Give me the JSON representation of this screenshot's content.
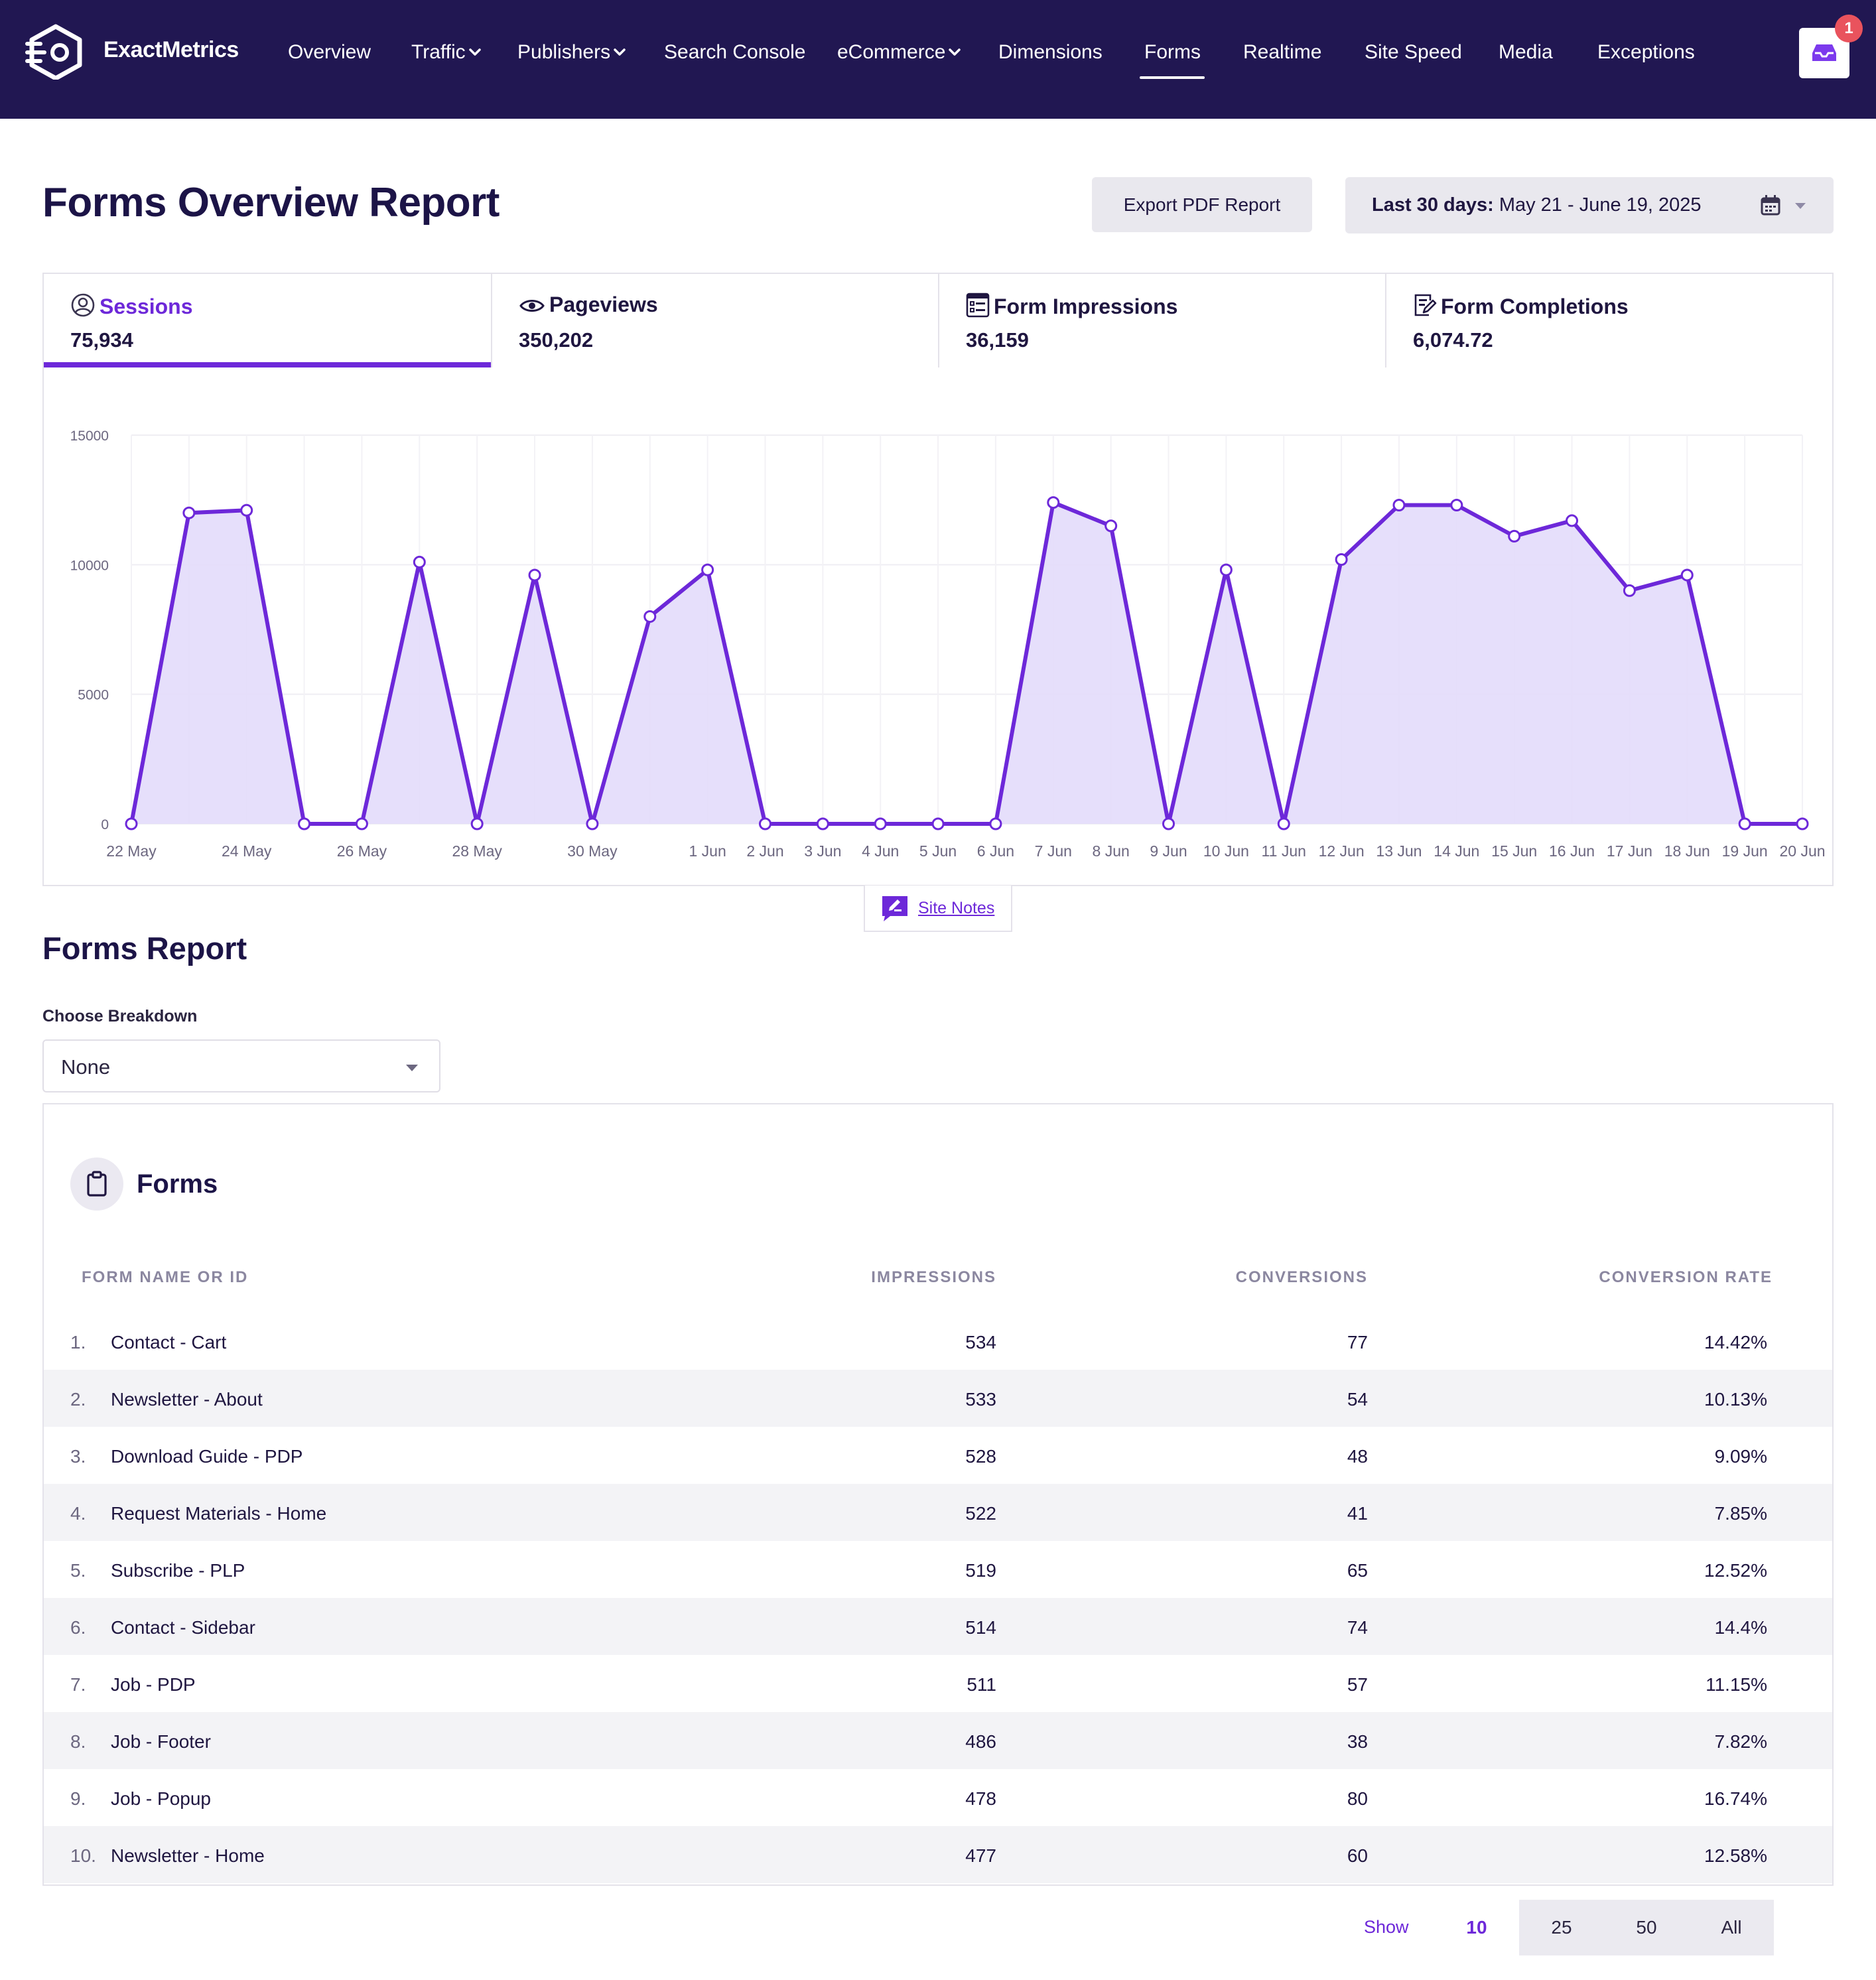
{
  "brand": {
    "name": "ExactMetrics"
  },
  "nav": {
    "items": [
      {
        "label": "Overview",
        "dropdown": false
      },
      {
        "label": "Traffic",
        "dropdown": true
      },
      {
        "label": "Publishers",
        "dropdown": true
      },
      {
        "label": "Search Console",
        "dropdown": false
      },
      {
        "label": "eCommerce",
        "dropdown": true
      },
      {
        "label": "Dimensions",
        "dropdown": false
      },
      {
        "label": "Forms",
        "dropdown": false,
        "active": true
      },
      {
        "label": "Realtime",
        "dropdown": false
      },
      {
        "label": "Site Speed",
        "dropdown": false
      },
      {
        "label": "Media",
        "dropdown": false
      },
      {
        "label": "Exceptions",
        "dropdown": false
      }
    ],
    "notifications_count": "1",
    "inbox_icon": "inbox-icon"
  },
  "header": {
    "title": "Forms Overview Report",
    "export_label": "Export PDF Report",
    "date_prefix": "Last 30 days:",
    "date_range": "May 21 - June 19, 2025",
    "calendar_icon": "calendar-icon"
  },
  "metrics": [
    {
      "label": "Sessions",
      "value": "75,934",
      "icon": "user-circle-icon",
      "active": true
    },
    {
      "label": "Pageviews",
      "value": "350,202",
      "icon": "eye-icon",
      "active": false
    },
    {
      "label": "Form Impressions",
      "value": "36,159",
      "icon": "form-list-icon",
      "active": false
    },
    {
      "label": "Form Completions",
      "value": "6,074.72",
      "icon": "form-edit-icon",
      "active": false
    }
  ],
  "chart_data": {
    "type": "area",
    "series": [
      {
        "values": [
          0,
          12000,
          12100,
          0,
          0,
          10100,
          0,
          9600,
          0,
          8000,
          9800,
          0,
          0,
          0,
          0,
          0,
          12400,
          11500,
          0,
          9800,
          0,
          10200,
          12300,
          12300,
          11100,
          11700,
          9000,
          9600,
          0,
          0
        ]
      }
    ],
    "x_labels": [
      "22 May",
      "",
      "24 May",
      "",
      "26 May",
      "",
      "28 May",
      "",
      "30 May",
      "",
      "1 Jun",
      "2 Jun",
      "3 Jun",
      "4 Jun",
      "5 Jun",
      "6 Jun",
      "7 Jun",
      "8 Jun",
      "9 Jun",
      "10 Jun",
      "11 Jun",
      "12 Jun",
      "13 Jun",
      "14 Jun",
      "15 Jun",
      "16 Jun",
      "17 Jun",
      "18 Jun",
      "19 Jun",
      "20 Jun"
    ],
    "y_ticks": [
      0,
      5000,
      10000,
      15000
    ],
    "ylim": [
      0,
      15000
    ],
    "grid": true,
    "line_color": "#6d28d9",
    "fill_color": "#e3dbfb"
  },
  "site_notes": {
    "label": "Site Notes",
    "icon": "edit-note-icon"
  },
  "forms_report": {
    "title": "Forms Report",
    "breakdown_label": "Choose Breakdown",
    "breakdown_value": "None",
    "card_title": "Forms",
    "card_icon": "clipboard-icon",
    "columns": [
      "FORM NAME OR ID",
      "IMPRESSIONS",
      "CONVERSIONS",
      "CONVERSION RATE"
    ],
    "rows": [
      {
        "num": "1.",
        "name": "Contact - Cart",
        "impressions": "534",
        "conversions": "77",
        "rate": "14.42%"
      },
      {
        "num": "2.",
        "name": "Newsletter - About",
        "impressions": "533",
        "conversions": "54",
        "rate": "10.13%"
      },
      {
        "num": "3.",
        "name": "Download Guide - PDP",
        "impressions": "528",
        "conversions": "48",
        "rate": "9.09%"
      },
      {
        "num": "4.",
        "name": "Request Materials - Home",
        "impressions": "522",
        "conversions": "41",
        "rate": "7.85%"
      },
      {
        "num": "5.",
        "name": "Subscribe - PLP",
        "impressions": "519",
        "conversions": "65",
        "rate": "12.52%"
      },
      {
        "num": "6.",
        "name": "Contact - Sidebar",
        "impressions": "514",
        "conversions": "74",
        "rate": "14.4%"
      },
      {
        "num": "7.",
        "name": "Job - PDP",
        "impressions": "511",
        "conversions": "57",
        "rate": "11.15%"
      },
      {
        "num": "8.",
        "name": "Job - Footer",
        "impressions": "486",
        "conversions": "38",
        "rate": "7.82%"
      },
      {
        "num": "9.",
        "name": "Job - Popup",
        "impressions": "478",
        "conversions": "80",
        "rate": "16.74%"
      },
      {
        "num": "10.",
        "name": "Newsletter - Home",
        "impressions": "477",
        "conversions": "60",
        "rate": "12.58%"
      }
    ]
  },
  "pager": {
    "show_label": "Show",
    "options": [
      "10",
      "25",
      "50",
      "All"
    ],
    "selected": "10"
  },
  "colors": {
    "nav_bg": "#211752",
    "accent": "#6d28d9",
    "badge": "#e9535d"
  }
}
